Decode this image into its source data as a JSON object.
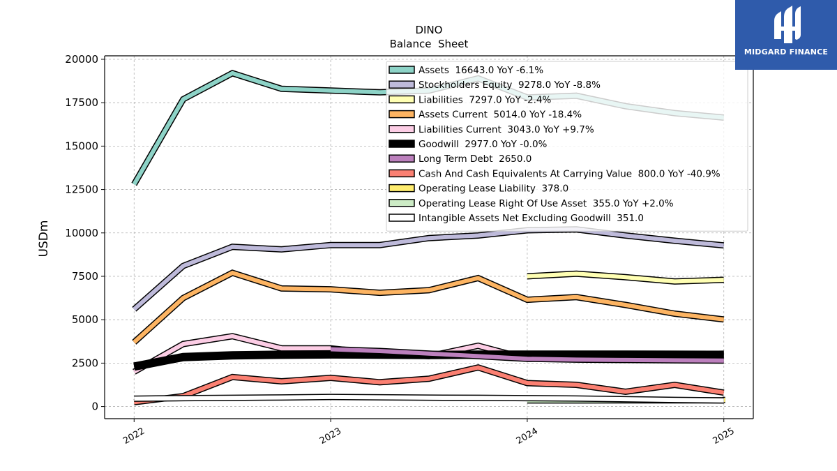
{
  "chart_data": {
    "type": "line",
    "title": "DINO",
    "subtitle": "Balance  Sheet",
    "ylabel": "USDm",
    "xlabel": "",
    "ylim": [
      -700,
      20200
    ],
    "xlim": [
      2021.85,
      2025.15
    ],
    "x_ticks": [
      2022,
      2023,
      2024,
      2025
    ],
    "x_tick_labels": [
      "2022",
      "2023",
      "2024",
      "2025"
    ],
    "y_ticks": [
      0,
      2500,
      5000,
      7500,
      10000,
      12500,
      15000,
      17500,
      20000
    ],
    "y_tick_labels": [
      "0",
      "2500",
      "5000",
      "7500",
      "10000",
      "12500",
      "15000",
      "17500",
      "20000"
    ],
    "grid": true,
    "legend_position": "top-right",
    "x": [
      2022.0,
      2022.25,
      2022.5,
      2022.75,
      2023.0,
      2023.25,
      2023.5,
      2023.75,
      2024.0,
      2024.25,
      2024.5,
      2024.75,
      2025.0
    ],
    "series": [
      {
        "name": "Assets  16643.0 YoY -6.1%",
        "color": "#8dd3c7",
        "width": 6,
        "values": [
          12800,
          17700,
          19200,
          18300,
          18200,
          18100,
          18200,
          18900,
          17800,
          17900,
          17300,
          16900,
          16643
        ]
      },
      {
        "name": "Stockholders Equity  9278.0 YoY -8.8%",
        "color": "#bebada",
        "width": 6,
        "values": [
          5600,
          8100,
          9200,
          9050,
          9300,
          9300,
          9700,
          9850,
          10150,
          10200,
          9850,
          9550,
          9278
        ]
      },
      {
        "name": "Liabilities  7297.0 YoY -2.4%",
        "color": "#ffffb3",
        "width": 6,
        "values": [
          null,
          null,
          null,
          null,
          null,
          null,
          null,
          null,
          7500,
          7650,
          7450,
          7200,
          7297
        ]
      },
      {
        "name": "Assets Current  5014.0 YoY -18.4%",
        "color": "#fdb462",
        "width": 6,
        "values": [
          3700,
          6250,
          7700,
          6800,
          6750,
          6550,
          6700,
          7400,
          6150,
          6300,
          5850,
          5350,
          5014
        ]
      },
      {
        "name": "Liabilities Current  3043.0 YoY +9.7%",
        "color": "#fccde5",
        "width": 6,
        "values": [
          2000,
          3600,
          4050,
          3350,
          3350,
          3050,
          2900,
          3500,
          2750,
          2800,
          2900,
          3000,
          3043
        ]
      },
      {
        "name": "Goodwill  2977.0 YoY -0.0%",
        "color": "#000000",
        "width": 9,
        "values": [
          2300,
          2850,
          2950,
          2980,
          3000,
          2990,
          2970,
          2985,
          2990,
          2990,
          2985,
          2980,
          2977
        ]
      },
      {
        "name": "Long Term Debt  2650.0",
        "color": "#bc80bd",
        "width": 6,
        "values": [
          null,
          null,
          null,
          null,
          3300,
          3200,
          3050,
          2900,
          2750,
          2700,
          2680,
          2660,
          2650
        ]
      },
      {
        "name": "Cash And Cash Equivalents At Carrying Value  800.0 YoY -40.9%",
        "color": "#fb8072",
        "width": 6,
        "values": [
          250,
          600,
          1700,
          1450,
          1650,
          1400,
          1600,
          2250,
          1350,
          1250,
          850,
          1250,
          800
        ]
      },
      {
        "name": "Operating Lease Liability  378.0",
        "color": "#ffed6f",
        "width": 6,
        "values": [
          null,
          null,
          null,
          null,
          null,
          null,
          null,
          null,
          null,
          null,
          null,
          null,
          378
        ]
      },
      {
        "name": "Operating Lease Right Of Use Asset  355.0 YoY +2.0%",
        "color": "#ccebc5",
        "width": 6,
        "values": [
          null,
          null,
          null,
          null,
          null,
          null,
          null,
          null,
          348,
          350,
          352,
          354,
          355
        ]
      },
      {
        "name": "Intangible Assets Net Excluding Goodwill  351.0",
        "color": "#ffffff",
        "width": 6,
        "values": [
          450,
          480,
          500,
          520,
          550,
          530,
          510,
          500,
          480,
          460,
          420,
          380,
          351
        ]
      }
    ]
  },
  "logo": {
    "text": "MIDGARD FINANCE"
  }
}
